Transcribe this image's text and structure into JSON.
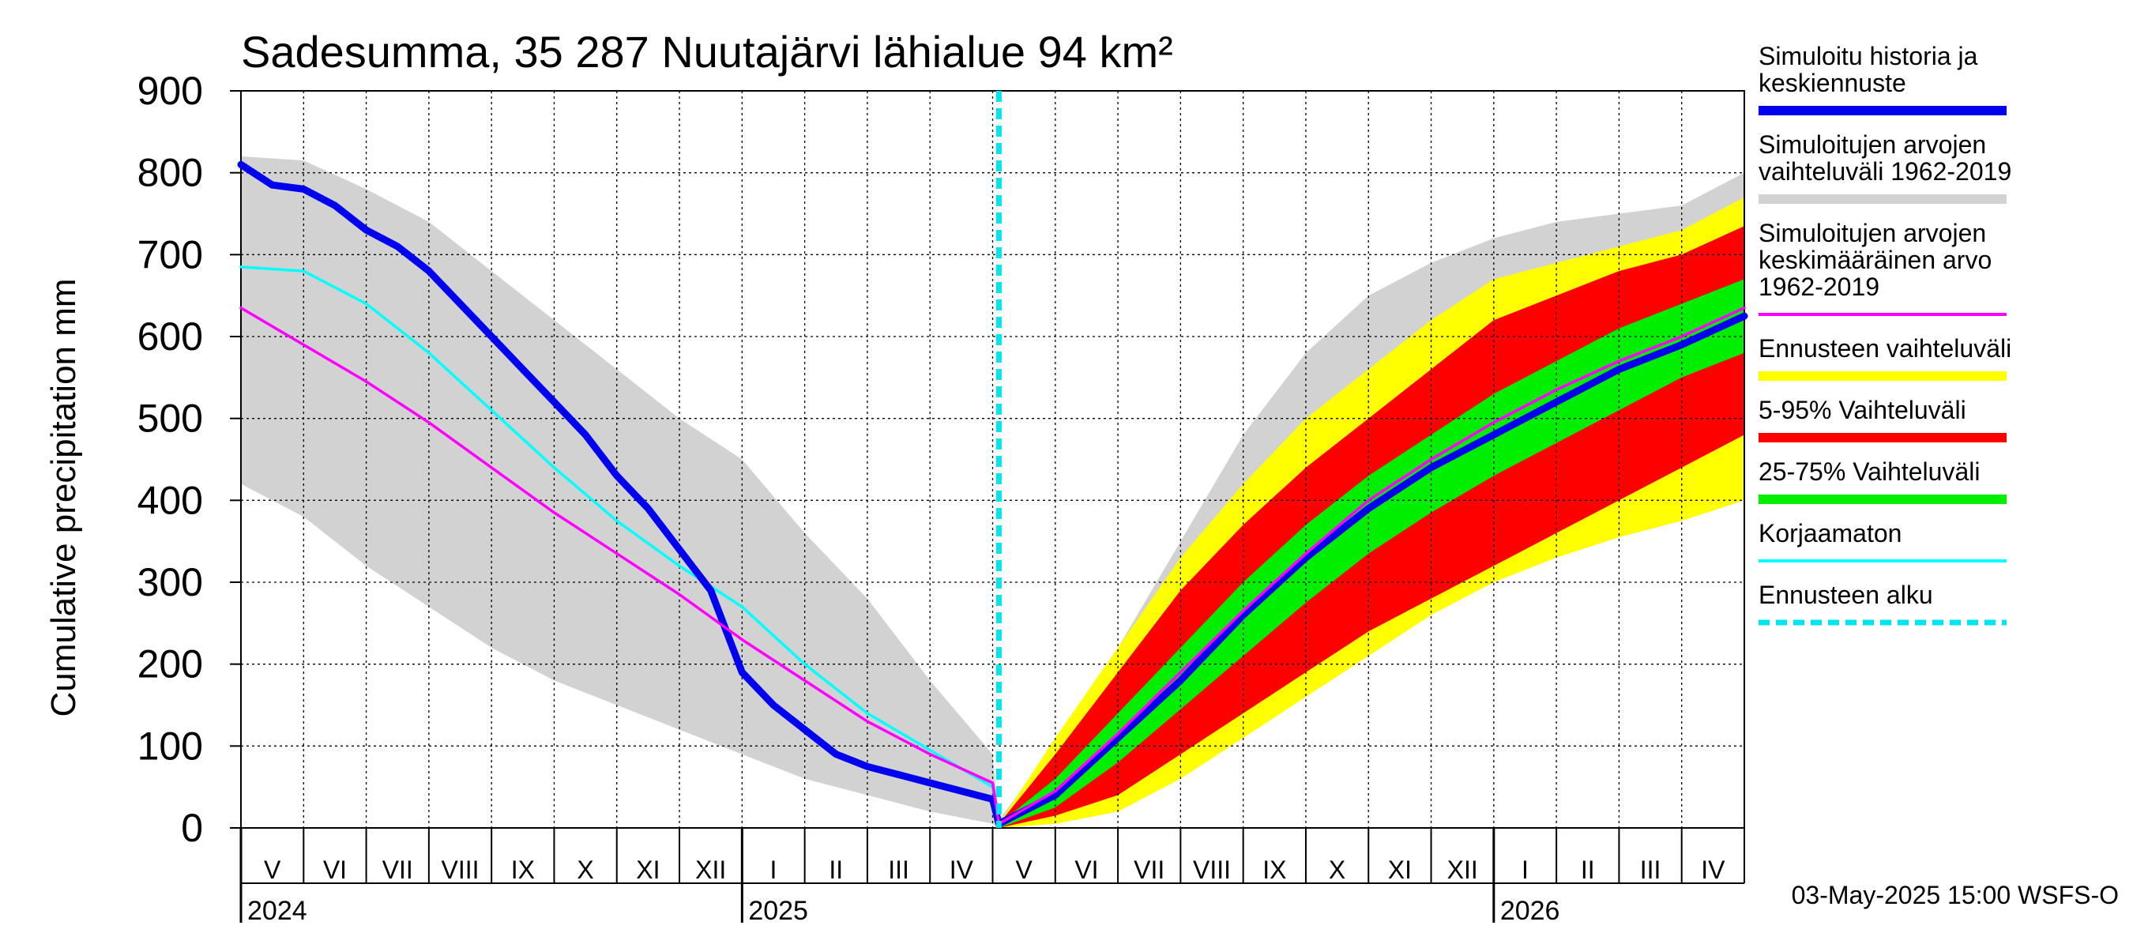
{
  "chart_data": {
    "type": "area",
    "title": "Sadesumma, 35 287 Nuutajärvi lähialue 94 km²",
    "ylabel": "Cumulative precipitation   mm",
    "ylim": [
      0,
      900
    ],
    "yticks": [
      "0",
      "100",
      "200",
      "300",
      "400",
      "500",
      "600",
      "700",
      "800",
      "900"
    ],
    "x_range_months": [
      0,
      24
    ],
    "forecast_start_month": 12.1,
    "months": [
      "V",
      "VI",
      "VII",
      "VIII",
      "IX",
      "X",
      "XI",
      "XII",
      "I",
      "II",
      "III",
      "IV",
      "V",
      "VI",
      "VII",
      "VIII",
      "IX",
      "X",
      "XI",
      "XII",
      "I",
      "II",
      "III",
      "IV"
    ],
    "years": [
      {
        "label": "2024",
        "month_index": 0
      },
      {
        "label": "2025",
        "month_index": 8
      },
      {
        "label": "2026",
        "month_index": 20
      }
    ],
    "timestamp": "03-May-2025 15:00 WSFS-O",
    "colors": {
      "simulated": "#0000ee",
      "historical_range": "#d2d2d2",
      "historical_mean": "#ff00ff",
      "forecast_range": "#ffff00",
      "p5_95": "#ff0000",
      "p25_75": "#00ee00",
      "uncorrected": "#00ffff",
      "forecast_start": "#00e5ee"
    },
    "legend": [
      {
        "label": "Simuloitu historia ja keskiennuste",
        "lines": [
          "Simuloitu historia ja",
          "keskiennuste"
        ],
        "color": "#0000ee",
        "style": "thick"
      },
      {
        "label": "Simuloitujen arvojen vaihteluväli 1962-2019",
        "lines": [
          "Simuloitujen arvojen",
          "vaihteluväli 1962-2019"
        ],
        "color": "#d2d2d2",
        "style": "thick"
      },
      {
        "label": "Simuloitujen arvojen keskimääräinen arvo 1962-2019",
        "lines": [
          "Simuloitujen arvojen",
          "keskimääräinen arvo",
          "   1962-2019"
        ],
        "color": "#ff00ff",
        "style": "thin"
      },
      {
        "label": "Ennusteen vaihteluväli",
        "lines": [
          "Ennusteen vaihteluväli"
        ],
        "color": "#ffff00",
        "style": "thick"
      },
      {
        "label": "5-95% Vaihteluväli",
        "lines": [
          "5-95% Vaihteluväli"
        ],
        "color": "#ff0000",
        "style": "thick"
      },
      {
        "label": "25-75% Vaihteluväli",
        "lines": [
          "25-75% Vaihteluväli"
        ],
        "color": "#00ee00",
        "style": "thick"
      },
      {
        "label": "Korjaamaton",
        "lines": [
          "Korjaamaton"
        ],
        "color": "#00ffff",
        "style": "thin"
      },
      {
        "label": "Ennusteen alku",
        "lines": [
          "Ennusteen alku"
        ],
        "color": "#00e5ee",
        "style": "dashed"
      }
    ],
    "series": {
      "simulated": {
        "name": "Simuloitu historia ja keskiennuste",
        "x": [
          0,
          0.5,
          1,
          1.5,
          2,
          2.5,
          3,
          3.5,
          4,
          4.5,
          5,
          5.5,
          6,
          6.5,
          7,
          7.5,
          8,
          8.5,
          9,
          9.5,
          10,
          10.5,
          11,
          11.5,
          12,
          12.1,
          13,
          14,
          15,
          16,
          17,
          18,
          19,
          20,
          21,
          22,
          23,
          24
        ],
        "values": [
          810,
          785,
          780,
          760,
          730,
          710,
          680,
          640,
          600,
          560,
          520,
          480,
          430,
          390,
          340,
          290,
          190,
          150,
          120,
          90,
          75,
          65,
          55,
          45,
          35,
          5,
          40,
          110,
          180,
          260,
          330,
          390,
          440,
          480,
          520,
          560,
          590,
          625
        ]
      },
      "historical_mean": {
        "name": "Simuloitujen arvojen keskimääräinen arvo 1962-2019",
        "x": [
          0,
          1,
          2,
          3,
          4,
          5,
          6,
          7,
          8,
          9,
          10,
          11,
          12,
          12.1,
          13,
          14,
          15,
          16,
          17,
          18,
          19,
          20,
          21,
          22,
          23,
          24
        ],
        "values": [
          635,
          590,
          545,
          495,
          440,
          385,
          335,
          285,
          230,
          180,
          130,
          90,
          55,
          5,
          45,
          115,
          190,
          265,
          335,
          400,
          450,
          495,
          535,
          570,
          600,
          635
        ]
      },
      "uncorrected": {
        "name": "Korjaamaton",
        "x": [
          0,
          1,
          2,
          3,
          4,
          5,
          6,
          7,
          8,
          9,
          10,
          11,
          12,
          12.1
        ],
        "values": [
          685,
          680,
          640,
          580,
          510,
          440,
          375,
          320,
          270,
          200,
          140,
          95,
          50,
          10
        ]
      },
      "historical_range": {
        "name": "Simuloitujen arvojen vaihteluväli 1962-2019",
        "x": [
          0,
          1,
          2,
          3,
          4,
          5,
          6,
          7,
          8,
          9,
          10,
          11,
          12,
          12.1,
          13,
          14,
          15,
          16,
          17,
          18,
          19,
          20,
          21,
          22,
          23,
          24
        ],
        "upper": [
          820,
          815,
          780,
          740,
          680,
          620,
          560,
          500,
          450,
          360,
          280,
          180,
          90,
          10,
          100,
          220,
          350,
          480,
          580,
          650,
          690,
          720,
          740,
          750,
          760,
          800
        ],
        "lower": [
          420,
          380,
          320,
          270,
          220,
          180,
          150,
          120,
          90,
          60,
          40,
          20,
          5,
          0,
          15,
          40,
          90,
          150,
          200,
          250,
          290,
          320,
          350,
          370,
          385,
          430
        ]
      },
      "forecast_range": {
        "name": "Ennusteen vaihteluväli",
        "x": [
          12.1,
          13,
          14,
          15,
          16,
          17,
          18,
          19,
          20,
          21,
          22,
          23,
          24
        ],
        "upper": [
          5,
          110,
          220,
          330,
          420,
          500,
          560,
          620,
          670,
          690,
          710,
          730,
          770
        ],
        "lower": [
          0,
          5,
          20,
          60,
          110,
          160,
          210,
          260,
          300,
          330,
          355,
          375,
          400
        ]
      },
      "p5_95": {
        "name": "5-95% Vaihteluväli",
        "x": [
          12.1,
          13,
          14,
          15,
          16,
          17,
          18,
          19,
          20,
          21,
          22,
          23,
          24
        ],
        "upper": [
          5,
          90,
          190,
          290,
          370,
          440,
          500,
          560,
          620,
          650,
          680,
          700,
          735
        ],
        "lower": [
          0,
          15,
          40,
          90,
          140,
          190,
          240,
          280,
          320,
          360,
          400,
          440,
          480
        ]
      },
      "p25_75": {
        "name": "25-75% Vaihteluväli",
        "x": [
          12.1,
          13,
          14,
          15,
          16,
          17,
          18,
          19,
          20,
          21,
          22,
          23,
          24
        ],
        "upper": [
          5,
          60,
          140,
          220,
          300,
          370,
          430,
          480,
          530,
          570,
          610,
          640,
          670
        ],
        "lower": [
          0,
          25,
          80,
          145,
          210,
          275,
          335,
          385,
          430,
          470,
          510,
          550,
          580
        ]
      }
    }
  }
}
